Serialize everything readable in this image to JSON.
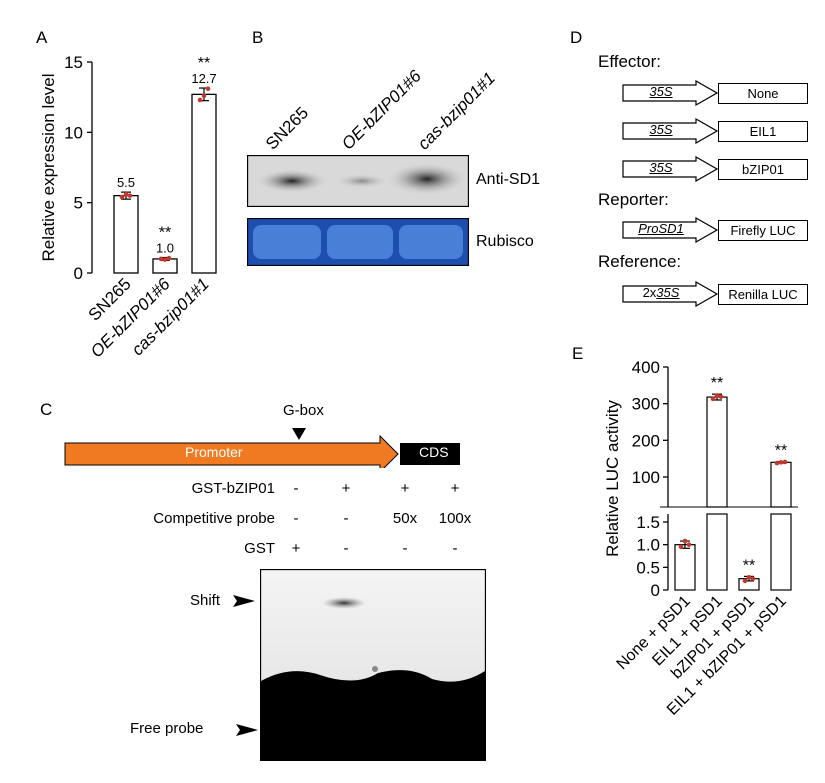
{
  "panel_letters": {
    "A": "A",
    "B": "B",
    "C": "C",
    "D": "D",
    "E": "E"
  },
  "chart_data": [
    {
      "type": "bar",
      "panel": "A",
      "categories": [
        "SN265",
        "OE-bZIP01#6",
        "cas-bzip01#1"
      ],
      "values": [
        5.5,
        1.0,
        12.7
      ],
      "value_labels": [
        "5.5",
        "1.0",
        "12.7"
      ],
      "errors": [
        0.25,
        0.1,
        0.45
      ],
      "significance": [
        "",
        "**",
        "**"
      ],
      "points": [
        [
          5.4,
          5.6,
          5.5
        ],
        [
          1.0,
          0.95,
          1.05
        ],
        [
          12.3,
          12.6,
          13.1
        ]
      ],
      "ylabel": "Relative expression level",
      "ylim": [
        0,
        15
      ],
      "yticks": [
        "0",
        "5",
        "10",
        "15"
      ],
      "bar_color": "#ffffff",
      "point_color": "#c0392b"
    },
    {
      "type": "bar",
      "panel": "E",
      "categories": [
        "None + pSD1",
        "EIL1 + pSD1",
        "bZIP01 + pSD1",
        "EIL1 + bZIP01 + pSD1"
      ],
      "values": [
        1.0,
        318,
        0.25,
        140
      ],
      "errors": [
        0.08,
        8,
        0.05,
        2
      ],
      "significance": [
        "",
        "**",
        "**",
        "**"
      ],
      "points": [
        [
          0.95,
          1.08,
          1.0
        ],
        [
          313,
          322,
          319
        ],
        [
          0.2,
          0.28,
          0.25
        ],
        [
          138,
          140,
          141
        ]
      ],
      "ylabel": "Relative LUC activity",
      "yaxis_break": true,
      "lower_ylim": [
        0,
        1.5
      ],
      "lower_yticks": [
        "0",
        "0.5",
        "1.0",
        "1.5"
      ],
      "upper_ylim": [
        100,
        400
      ],
      "upper_yticks": [
        "100",
        "200",
        "300",
        "400"
      ],
      "bar_color": "#ffffff",
      "point_color": "#c0392b"
    }
  ],
  "panelB": {
    "lanes": [
      "SN265",
      "OE-bZIP01#6",
      "cas-bzip01#1"
    ],
    "blot1_label": "Anti-SD1",
    "blot2_label": "Rubisco",
    "rubisco_color": "#3a6cc8"
  },
  "panelC": {
    "gbox_label": "G-box",
    "promoter_label": "Promoter",
    "cds_label": "CDS",
    "arrow_color": "#f07a22",
    "row_labels": [
      "GST-bZIP01",
      "Competitive probe",
      "GST"
    ],
    "rows": [
      [
        "-",
        "+",
        "+",
        "+"
      ],
      [
        "-",
        "-",
        "50x",
        "100x"
      ],
      [
        "+",
        "-",
        "-",
        "-"
      ]
    ],
    "shift_label": "Shift",
    "free_probe_label": "Free probe"
  },
  "panelD": {
    "effector_label": "Effector:",
    "reporter_label": "Reporter:",
    "reference_label": "Reference:",
    "constructs": [
      {
        "promoter": "35S",
        "gene": "None"
      },
      {
        "promoter": "35S",
        "gene": "EIL1"
      },
      {
        "promoter": "35S",
        "gene": "bZIP01"
      },
      {
        "promoter": "ProSD1",
        "gene": "Firefly LUC"
      },
      {
        "promoter_prefix": "2x",
        "promoter": "35S",
        "gene": "Renilla LUC"
      }
    ]
  }
}
